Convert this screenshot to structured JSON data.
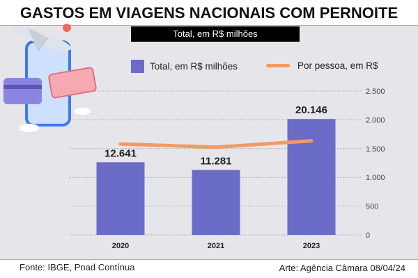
{
  "title": "GASTOS EM VIAGENS NACIONAIS COM PERNOITE",
  "subtitle": "Total, em R$ milhões",
  "footer": {
    "source": "Fonte: IBGE, Pnad Contínua",
    "credit": "Arte: Agência Câmara 08/04/24"
  },
  "colors": {
    "bars": "#6b6cc8",
    "line": "#f39a62",
    "background": "#e6e6ea"
  },
  "illustration": "airplane-phone-card-tickets-icon",
  "chart_data": {
    "type": "bar+line",
    "categories": [
      "2020",
      "2021",
      "2023"
    ],
    "series": [
      {
        "name": "Total, em R$ milhões",
        "type": "bar",
        "values": [
          12641,
          11281,
          20146
        ],
        "labels": [
          "12.641",
          "11.281",
          "20.146"
        ]
      },
      {
        "name": "Por pessoa, em R$",
        "type": "line",
        "values": [
          1580,
          1525,
          1635
        ]
      }
    ],
    "y_right": {
      "range": [
        0,
        2500
      ],
      "ticks": [
        "0",
        "500",
        "1.000",
        "1.500",
        "2.000",
        "2.500"
      ],
      "tick_values": [
        0,
        500,
        1000,
        1500,
        2000,
        2500
      ]
    },
    "bar_scale_max": 25000,
    "grid": true,
    "legend": "top"
  }
}
